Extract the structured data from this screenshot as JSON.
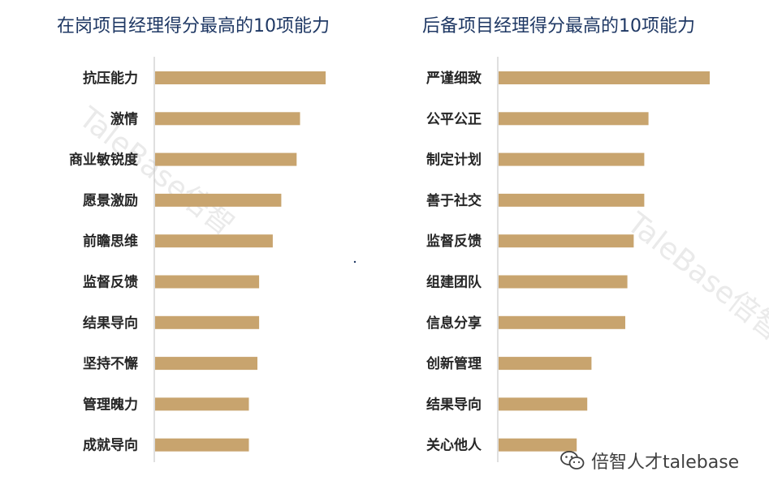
{
  "colors": {
    "bar": "#c8a46e",
    "axis": "#bfbfbf",
    "title": "#1f3864",
    "label": "#262626"
  },
  "watermark": {
    "left_text": "TaleBase倍智",
    "right_text": "TaleBase倍智"
  },
  "brand": {
    "text": "倍智人才talebase",
    "icon": "wechat-icon"
  },
  "chart_data": [
    {
      "type": "bar",
      "orientation": "horizontal",
      "title": "在岗项目经理得分最高的10项能力",
      "categories": [
        "抗压能力",
        "激情",
        "商业敏锐度",
        "愿景激励",
        "前瞻思维",
        "监督反馈",
        "结果导向",
        "坚持不懈",
        "管理魄力",
        "成就导向"
      ],
      "values": [
        100,
        85,
        83,
        74,
        69,
        61,
        61,
        60,
        55,
        55
      ],
      "xlim": [
        0,
        100
      ],
      "grid": false,
      "legend": "none"
    },
    {
      "type": "bar",
      "orientation": "horizontal",
      "title": "后备项目经理得分最高的10项能力",
      "categories": [
        "严谨细致",
        "公平公正",
        "制定计划",
        "善于社交",
        "监督反馈",
        "组建团队",
        "信息分享",
        "创新管理",
        "结果导向",
        "关心他人"
      ],
      "values": [
        100,
        71,
        69,
        69,
        64,
        61,
        60,
        44,
        42,
        37
      ],
      "xlim": [
        0,
        100
      ],
      "grid": false,
      "legend": "none"
    }
  ]
}
